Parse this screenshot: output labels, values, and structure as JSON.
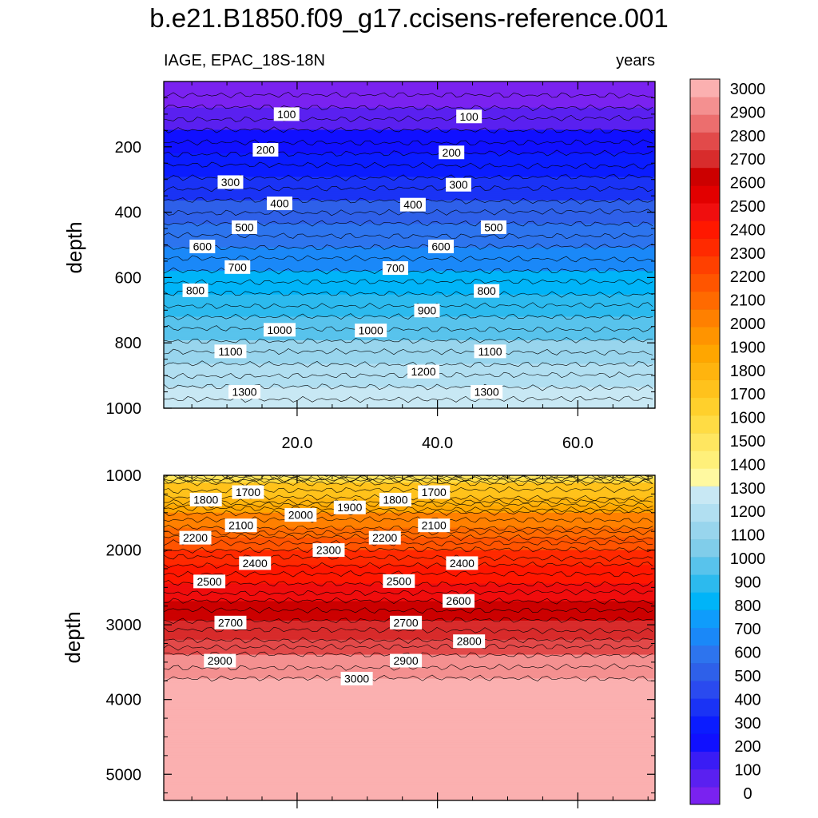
{
  "chart_data": [
    {
      "type": "contour",
      "panel": "upper",
      "title": "b.e21.B1850.f09_g17.ccisens-reference.001",
      "left_string": "IAGE, EPAC_18S-18N",
      "right_string": "years",
      "xlabel": "",
      "ylabel": "depth",
      "xlim": [
        1,
        71
      ],
      "ylim": [
        1000,
        0
      ],
      "x_ticks": [
        20.0,
        40.0,
        60.0
      ],
      "x_tick_labels": [
        "20.0",
        "40.0",
        "60.0"
      ],
      "y_ticks": [
        200,
        400,
        600,
        800,
        1000
      ],
      "y_tick_labels": [
        "200",
        "400",
        "600",
        "800",
        "1000"
      ],
      "contour_interval": 100,
      "field_range": [
        0,
        1400
      ],
      "contour_labels": [
        {
          "text": "100",
          "x": 18.5,
          "depth": 100
        },
        {
          "text": "100",
          "x": 44.5,
          "depth": 107
        },
        {
          "text": "200",
          "x": 15.5,
          "depth": 209
        },
        {
          "text": "200",
          "x": 42.0,
          "depth": 217
        },
        {
          "text": "300",
          "x": 10.5,
          "depth": 308
        },
        {
          "text": "300",
          "x": 43.0,
          "depth": 316
        },
        {
          "text": "400",
          "x": 17.5,
          "depth": 373
        },
        {
          "text": "400",
          "x": 36.5,
          "depth": 377
        },
        {
          "text": "500",
          "x": 12.5,
          "depth": 446
        },
        {
          "text": "500",
          "x": 48.0,
          "depth": 446
        },
        {
          "text": "600",
          "x": 6.5,
          "depth": 505
        },
        {
          "text": "600",
          "x": 40.5,
          "depth": 505
        },
        {
          "text": "700",
          "x": 11.5,
          "depth": 568
        },
        {
          "text": "700",
          "x": 34.0,
          "depth": 571
        },
        {
          "text": "800",
          "x": 5.5,
          "depth": 639
        },
        {
          "text": "800",
          "x": 47.0,
          "depth": 641
        },
        {
          "text": "900",
          "x": 38.5,
          "depth": 701
        },
        {
          "text": "1000",
          "x": 17.5,
          "depth": 760
        },
        {
          "text": "1000",
          "x": 30.5,
          "depth": 762
        },
        {
          "text": "1100",
          "x": 10.5,
          "depth": 826
        },
        {
          "text": "1100",
          "x": 47.5,
          "depth": 826
        },
        {
          "text": "1200",
          "x": 38.0,
          "depth": 888
        },
        {
          "text": "1300",
          "x": 12.5,
          "depth": 950
        },
        {
          "text": "1300",
          "x": 47.0,
          "depth": 950
        }
      ]
    },
    {
      "type": "contour",
      "panel": "lower",
      "xlabel": "",
      "ylabel": "depth",
      "xlim": [
        1,
        71
      ],
      "ylim": [
        5350,
        1000
      ],
      "y_ticks": [
        1000,
        2000,
        3000,
        4000,
        5000
      ],
      "y_tick_labels": [
        "1000",
        "2000",
        "3000",
        "4000",
        "5000"
      ],
      "contour_interval": 100,
      "field_range": [
        1500,
        3000
      ],
      "contour_labels": [
        {
          "text": "1700",
          "x": 13.0,
          "depth": 1225
        },
        {
          "text": "1700",
          "x": 39.5,
          "depth": 1225
        },
        {
          "text": "1800",
          "x": 7.0,
          "depth": 1325
        },
        {
          "text": "1800",
          "x": 34.0,
          "depth": 1325
        },
        {
          "text": "1900",
          "x": 27.5,
          "depth": 1430
        },
        {
          "text": "2000",
          "x": 20.5,
          "depth": 1530
        },
        {
          "text": "2100",
          "x": 12.0,
          "depth": 1670
        },
        {
          "text": "2100",
          "x": 39.5,
          "depth": 1670
        },
        {
          "text": "2200",
          "x": 5.5,
          "depth": 1835
        },
        {
          "text": "2200",
          "x": 32.5,
          "depth": 1835
        },
        {
          "text": "2300",
          "x": 24.5,
          "depth": 2000
        },
        {
          "text": "2400",
          "x": 14.0,
          "depth": 2175
        },
        {
          "text": "2400",
          "x": 43.5,
          "depth": 2175
        },
        {
          "text": "2500",
          "x": 7.5,
          "depth": 2420
        },
        {
          "text": "2500",
          "x": 34.5,
          "depth": 2415
        },
        {
          "text": "2600",
          "x": 43.0,
          "depth": 2680
        },
        {
          "text": "2700",
          "x": 10.5,
          "depth": 2970
        },
        {
          "text": "2700",
          "x": 35.5,
          "depth": 2970
        },
        {
          "text": "2800",
          "x": 44.5,
          "depth": 3220
        },
        {
          "text": "2900",
          "x": 9.0,
          "depth": 3480
        },
        {
          "text": "2900",
          "x": 35.5,
          "depth": 3480
        },
        {
          "text": "3000",
          "x": 28.5,
          "depth": 3720
        }
      ]
    },
    {
      "type": "colorbar",
      "levels": [
        0,
        100,
        200,
        300,
        400,
        500,
        600,
        700,
        800,
        900,
        1000,
        1100,
        1200,
        1300,
        1400,
        1500,
        1600,
        1700,
        1800,
        1900,
        2000,
        2100,
        2200,
        2300,
        2400,
        2500,
        2600,
        2700,
        2800,
        2900,
        3000
      ],
      "labels": [
        "0",
        "100",
        "200",
        "300",
        "400",
        "500",
        "600",
        "700",
        "800",
        "900",
        "1000",
        "1100",
        "1200",
        "1300",
        "1400",
        "1500",
        "1600",
        "1700",
        "1800",
        "1900",
        "2000",
        "2100",
        "2200",
        "2300",
        "2400",
        "2500",
        "2600",
        "2700",
        "2800",
        "2900",
        "3000"
      ],
      "colors": [
        "#7a22f0",
        "#5a20f0",
        "#3a1cf5",
        "#1010ff",
        "#0b1cff",
        "#1a33f5",
        "#2a4aef",
        "#2e60e9",
        "#2d74ee",
        "#1a88f8",
        "#0f9cfb",
        "#00b4f8",
        "#2cbaee",
        "#58c3ec",
        "#80cdea",
        "#98d5ed",
        "#b1dff1",
        "#c8e8f4",
        "#fff9a0",
        "#fff07a",
        "#ffe660",
        "#ffdc44",
        "#ffd02c",
        "#ffc21c",
        "#ffb40e",
        "#ffa600",
        "#ff9400",
        "#ff8000",
        "#ff6a00",
        "#ff5500",
        "#ff4000",
        "#ff2a00",
        "#ff1800",
        "#f00e0e",
        "#e20000",
        "#cc0000",
        "#d82c2c",
        "#e24a4a",
        "#ec6e6e",
        "#f49090",
        "#fbb0b0"
      ]
    }
  ]
}
